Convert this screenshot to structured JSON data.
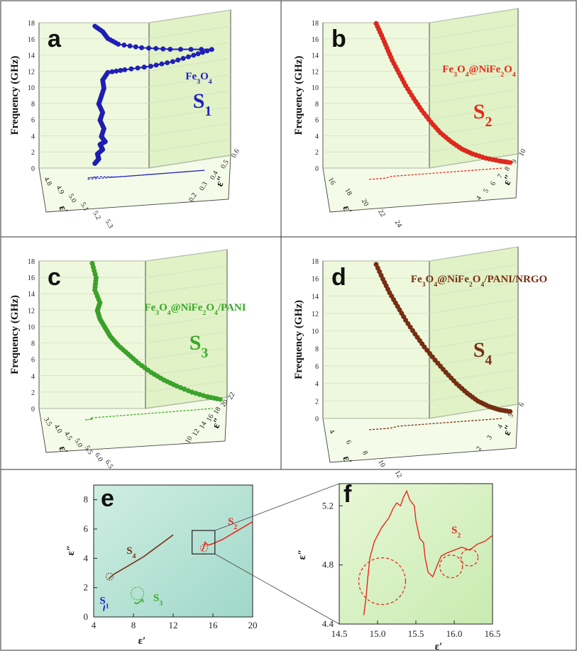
{
  "chart_data": [
    {
      "panel": "a",
      "type": "line3d",
      "material": "Fe3O4",
      "sample": "S1",
      "color": "#1f1fbf",
      "zlabel": "Frequency (GHz)",
      "xlabel": "ε′",
      "ylabel": "ε″",
      "z_ticks": [
        "0",
        "2",
        "4",
        "6",
        "8",
        "10",
        "12",
        "14",
        "16",
        "18"
      ],
      "x_ticks": [
        "4.8",
        "4.9",
        "5.0",
        "5.1",
        "5.2",
        "5.3"
      ],
      "y_ticks": [
        "0.2",
        "0.3",
        "0.4",
        "0.5",
        "0.6"
      ],
      "points": [
        [
          0.02,
          0.6
        ],
        [
          0.05,
          1.2
        ],
        [
          0.04,
          1.8
        ],
        [
          0.08,
          2.4
        ],
        [
          0.06,
          3.0
        ],
        [
          0.1,
          3.4
        ],
        [
          0.07,
          4.0
        ],
        [
          0.09,
          5.0
        ],
        [
          0.06,
          6.0
        ],
        [
          0.08,
          7.0
        ],
        [
          0.05,
          8.0
        ],
        [
          0.07,
          9.0
        ],
        [
          0.09,
          10.0
        ],
        [
          0.08,
          11.0
        ],
        [
          0.12,
          12.0
        ],
        [
          0.25,
          12.5
        ],
        [
          0.45,
          13.2
        ],
        [
          0.62,
          14.0
        ],
        [
          0.78,
          15.0
        ],
        [
          0.92,
          15.9
        ],
        [
          0.6,
          15.5
        ],
        [
          0.38,
          15.4
        ],
        [
          0.2,
          15.6
        ],
        [
          0.12,
          16.2
        ],
        [
          0.08,
          17.0
        ],
        [
          0.02,
          17.6
        ]
      ]
    },
    {
      "panel": "b",
      "type": "line3d",
      "material": "Fe3O4@NiFe2O4",
      "sample": "S2",
      "color": "#e8281e",
      "zlabel": "Frequency (GHz)",
      "xlabel": "ε′",
      "ylabel": "ε″",
      "z_ticks": [
        "0",
        "2",
        "4",
        "6",
        "8",
        "10",
        "12",
        "14",
        "16",
        "18"
      ],
      "x_ticks": [
        "16",
        "18",
        "20",
        "22",
        "24"
      ],
      "y_ticks": [
        "4",
        "5",
        "6",
        "7",
        "8",
        "9",
        "10"
      ],
      "points": [
        [
          0.0,
          17.9
        ],
        [
          0.04,
          16.5
        ],
        [
          0.08,
          15.0
        ],
        [
          0.12,
          13.5
        ],
        [
          0.17,
          12.0
        ],
        [
          0.22,
          10.5
        ],
        [
          0.28,
          9.0
        ],
        [
          0.34,
          7.6
        ],
        [
          0.41,
          6.2
        ],
        [
          0.48,
          5.0
        ],
        [
          0.56,
          4.0
        ],
        [
          0.64,
          3.2
        ],
        [
          0.72,
          2.7
        ],
        [
          0.82,
          2.3
        ],
        [
          0.92,
          2.1
        ],
        [
          1.0,
          2.0
        ]
      ]
    },
    {
      "panel": "c",
      "type": "line3d",
      "material": "Fe3O4@NiFe2O4/PANI",
      "sample": "S3",
      "color": "#3aa828",
      "zlabel": "Frequency (GHz)",
      "xlabel": "ε′",
      "ylabel": "ε″",
      "z_ticks": [
        "0",
        "2",
        "4",
        "6",
        "8",
        "10",
        "12",
        "14",
        "16",
        "18"
      ],
      "x_ticks": [
        "3.5",
        "4.0",
        "4.5",
        "5.0",
        "5.5",
        "6.0",
        "6.5"
      ],
      "y_ticks": [
        "10",
        "12",
        "14",
        "16",
        "18",
        "20",
        "22"
      ],
      "points": [
        [
          0.0,
          17.7
        ],
        [
          0.03,
          16.0
        ],
        [
          0.02,
          14.5
        ],
        [
          0.06,
          13.0
        ],
        [
          0.04,
          12.0
        ],
        [
          0.06,
          11.0
        ],
        [
          0.1,
          10.0
        ],
        [
          0.14,
          9.0
        ],
        [
          0.2,
          8.0
        ],
        [
          0.28,
          7.0
        ],
        [
          0.36,
          6.0
        ],
        [
          0.46,
          5.0
        ],
        [
          0.56,
          4.2
        ],
        [
          0.66,
          3.6
        ],
        [
          0.78,
          3.0
        ],
        [
          0.9,
          2.6
        ],
        [
          1.0,
          2.4
        ]
      ]
    },
    {
      "panel": "d",
      "type": "line3d",
      "material": "Fe3O4@NiFe2O4/PANI/NRGO",
      "sample": "S4",
      "color": "#7a2e12",
      "zlabel": "Frequency (GHz)",
      "xlabel": "ε′",
      "ylabel": "ε″",
      "z_ticks": [
        "0",
        "2",
        "4",
        "6",
        "8",
        "10",
        "12",
        "14",
        "16",
        "18"
      ],
      "x_ticks": [
        "4",
        "6",
        "8",
        "10",
        "12"
      ],
      "y_ticks": [
        "2",
        "3",
        "4",
        "5",
        "6"
      ],
      "points": [
        [
          0.0,
          17.6
        ],
        [
          0.05,
          16.0
        ],
        [
          0.1,
          14.5
        ],
        [
          0.16,
          13.0
        ],
        [
          0.22,
          11.5
        ],
        [
          0.29,
          10.0
        ],
        [
          0.36,
          8.6
        ],
        [
          0.44,
          7.2
        ],
        [
          0.52,
          5.9
        ],
        [
          0.6,
          4.7
        ],
        [
          0.68,
          3.7
        ],
        [
          0.76,
          2.9
        ],
        [
          0.84,
          2.4
        ],
        [
          0.92,
          2.1
        ],
        [
          1.0,
          2.0
        ]
      ]
    },
    {
      "panel": "e",
      "type": "line",
      "xlabel": "ε′",
      "ylabel": "ε″",
      "xlim": [
        4,
        20
      ],
      "ylim": [
        0,
        9
      ],
      "x_ticks": [
        "4",
        "8",
        "12",
        "16",
        "20"
      ],
      "y_ticks": [
        "0",
        "2",
        "4",
        "6",
        "8"
      ],
      "series": [
        {
          "name": "S1",
          "color": "#1f1fbf",
          "points": [
            [
              5.0,
              0.4
            ],
            [
              5.05,
              0.6
            ],
            [
              5.1,
              0.8
            ],
            [
              5.0,
              0.5
            ]
          ]
        },
        {
          "name": "S2",
          "color": "#e8281e",
          "points": [
            [
              14.9,
              4.5
            ],
            [
              15.1,
              4.8
            ],
            [
              15.2,
              5.1
            ],
            [
              15.5,
              4.9
            ],
            [
              16.0,
              5.0
            ],
            [
              17.0,
              5.3
            ],
            [
              18.0,
              5.7
            ],
            [
              19.0,
              6.1
            ],
            [
              20.0,
              6.5
            ]
          ]
        },
        {
          "name": "S3",
          "color": "#3aa828",
          "points": [
            [
              8.1,
              1.0
            ],
            [
              8.3,
              0.9
            ],
            [
              8.6,
              1.0
            ],
            [
              8.9,
              1.2
            ],
            [
              9.0,
              1.0
            ]
          ]
        },
        {
          "name": "S4",
          "color": "#7a2e12",
          "points": [
            [
              5.5,
              2.6
            ],
            [
              6.0,
              2.9
            ],
            [
              7.0,
              3.3
            ],
            [
              8.0,
              3.7
            ],
            [
              9.0,
              4.1
            ],
            [
              10.0,
              4.6
            ],
            [
              11.0,
              5.1
            ],
            [
              12.0,
              5.6
            ]
          ]
        }
      ]
    },
    {
      "panel": "f",
      "type": "line",
      "xlabel": "ε′",
      "ylabel": "ε″",
      "xlim": [
        14.5,
        16.5
      ],
      "ylim": [
        4.4,
        5.35
      ],
      "x_ticks": [
        "14.5",
        "15.0",
        "15.5",
        "16.0",
        "16.5"
      ],
      "y_ticks": [
        "4.4",
        "4.8",
        "5.2"
      ],
      "series": [
        {
          "name": "S2",
          "color": "#e8281e",
          "points": [
            [
              14.82,
              4.46
            ],
            [
              14.85,
              4.58
            ],
            [
              14.87,
              4.7
            ],
            [
              14.9,
              4.85
            ],
            [
              14.96,
              4.96
            ],
            [
              15.05,
              5.05
            ],
            [
              15.15,
              5.12
            ],
            [
              15.2,
              5.18
            ],
            [
              15.25,
              5.22
            ],
            [
              15.3,
              5.2
            ],
            [
              15.34,
              5.26
            ],
            [
              15.38,
              5.3
            ],
            [
              15.42,
              5.24
            ],
            [
              15.48,
              5.2
            ],
            [
              15.5,
              5.1
            ],
            [
              15.55,
              4.98
            ],
            [
              15.6,
              4.95
            ],
            [
              15.62,
              4.85
            ],
            [
              15.66,
              4.75
            ],
            [
              15.72,
              4.72
            ],
            [
              15.78,
              4.8
            ],
            [
              15.83,
              4.86
            ],
            [
              15.9,
              4.88
            ],
            [
              16.0,
              4.9
            ],
            [
              16.1,
              4.92
            ],
            [
              16.2,
              4.9
            ],
            [
              16.3,
              4.94
            ],
            [
              16.4,
              4.96
            ],
            [
              16.5,
              5.0
            ]
          ]
        }
      ]
    }
  ]
}
